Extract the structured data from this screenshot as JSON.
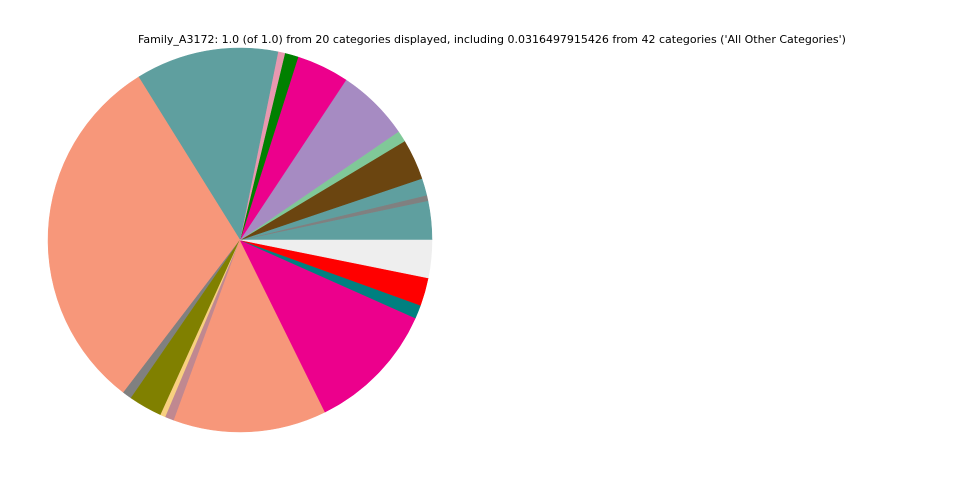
{
  "chart_data": {
    "type": "pie",
    "title": "Family_A3172: 1.0 (of 1.0) from 20 categories displayed, including 0.0316497915426 from 42 categories ('All Other Categories')",
    "values": [
      0.0328,
      0.0047,
      0.0144,
      0.0342,
      0.0094,
      0.0614,
      0.0442,
      0.0114,
      0.0058,
      0.1203,
      0.3075,
      0.0078,
      0.0283,
      0.0044,
      0.0075,
      0.1289,
      0.1103,
      0.0114,
      0.0236,
      0.0317
    ],
    "colors": [
      "#5f9f9f",
      "#808080",
      "#5f9f9f",
      "#6b4510",
      "#80c898",
      "#a68bc2",
      "#ec008c",
      "#008000",
      "#e898b0",
      "#5f9f9f",
      "#f7977a",
      "#808080",
      "#808000",
      "#f8d080",
      "#c08890",
      "#f7977a",
      "#ec008c",
      "#008080",
      "#ff0000",
      "#eeeeee"
    ],
    "start_angle": 0,
    "counterclock": true
  }
}
